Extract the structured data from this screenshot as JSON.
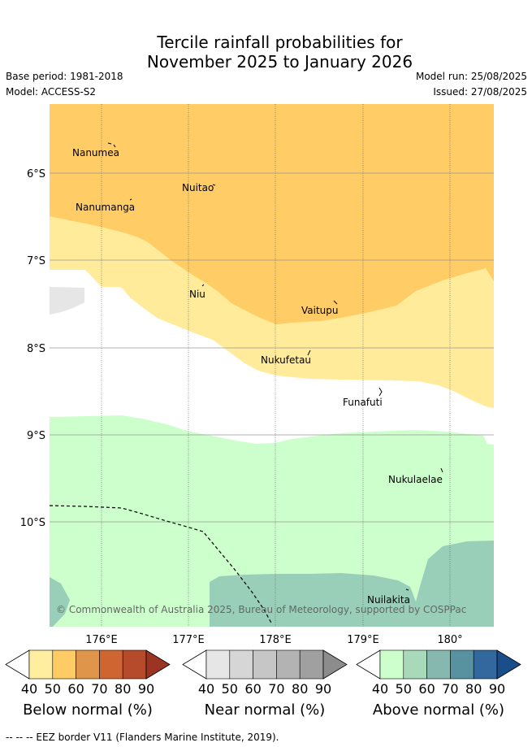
{
  "title": {
    "line1": "Tercile rainfall probabilities for",
    "line2": "November 2025 to January 2026"
  },
  "meta": {
    "base_period": "Base period: 1981-2018",
    "model": "Model: ACCESS-S2",
    "model_run": "Model run: 25/08/2025",
    "issued": "Issued: 27/08/2025"
  },
  "map": {
    "lat_labels": [
      "6°S",
      "7°S",
      "8°S",
      "9°S",
      "10°S"
    ],
    "lon_labels": [
      "176°E",
      "177°E",
      "178°E",
      "179°E",
      "180°"
    ],
    "places": [
      "Nanumea",
      "Nuitao",
      "Nanumanga",
      "Niu",
      "Vaitupu",
      "Nukufetau",
      "Funafuti",
      "Nukulaelae",
      "Nuilakita"
    ],
    "copyright": "© Commonwealth of Australia 2025, Bureau of Meteorology, supported by COSPPac",
    "colors": {
      "below_60": "#ffcc66",
      "below_50": "#ffeb99",
      "near_40": "#e6e6e6",
      "above_40": "#ccffcc",
      "above_50": "#99cfb8",
      "background": "#ffffff"
    }
  },
  "colorbars": [
    {
      "title": "Below normal (%)",
      "ticks": [
        "40",
        "50",
        "60",
        "70",
        "80",
        "90"
      ],
      "colors": [
        "#ffeda0",
        "#fecb64",
        "#e0964a",
        "#cf6632",
        "#b54b2a",
        "#9b3422"
      ]
    },
    {
      "title": "Near normal (%)",
      "ticks": [
        "40",
        "50",
        "60",
        "70",
        "80",
        "90"
      ],
      "colors": [
        "#e6e6e6",
        "#d6d6d6",
        "#c6c6c6",
        "#b3b3b3",
        "#a0a0a0",
        "#8c8c8c"
      ]
    },
    {
      "title": "Above normal (%)",
      "ticks": [
        "40",
        "50",
        "60",
        "70",
        "80",
        "90"
      ],
      "colors": [
        "#ccffcc",
        "#a8d9b8",
        "#86b8b0",
        "#5892a0",
        "#33689e",
        "#1a4e8a"
      ]
    }
  ],
  "legend": {
    "eez": "--  --  -- EEZ border V11 (Flanders Marine Institute, 2019)."
  }
}
